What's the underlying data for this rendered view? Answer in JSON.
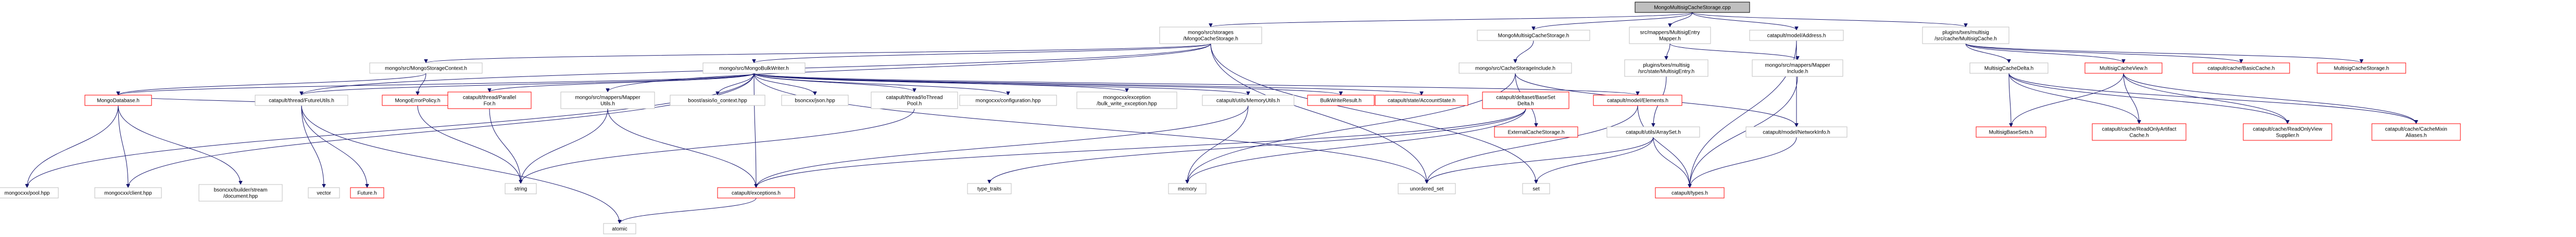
{
  "nodes": [
    {
      "id": "root",
      "lines": [
        "MongoMultisigCacheStorage.cpp"
      ],
      "style": "root"
    },
    {
      "id": "mcs",
      "lines": [
        "mongo/src/storages",
        "/MongoCacheStorage.h"
      ]
    },
    {
      "id": "mmcs",
      "lines": [
        "MongoMultisigCacheStorage.h"
      ]
    },
    {
      "id": "mme",
      "lines": [
        "src/mappers/MultisigEntry",
        "Mapper.h"
      ]
    },
    {
      "id": "cma",
      "lines": [
        "catapult/model/Address.h"
      ]
    },
    {
      "id": "pmc",
      "lines": [
        "plugins/txes/multisig",
        "/src/cache/MultisigCache.h"
      ]
    },
    {
      "id": "msc",
      "lines": [
        "mongo/src/MongoStorageContext.h"
      ]
    },
    {
      "id": "mbw",
      "lines": [
        "mongo/src/MongoBulkWriter.h"
      ]
    },
    {
      "id": "mcsi",
      "lines": [
        "mongo/src/CacheStorageInclude.h"
      ]
    },
    {
      "id": "pme",
      "lines": [
        "plugins/txes/multisig",
        "/src/state/MultisigEntry.h"
      ]
    },
    {
      "id": "mmi",
      "lines": [
        "mongo/src/mappers/Mapper",
        "Include.h"
      ]
    },
    {
      "id": "mcd",
      "lines": [
        "MultisigCacheDelta.h"
      ]
    },
    {
      "id": "mcv",
      "lines": [
        "MultisigCacheView.h"
      ],
      "style": "red"
    },
    {
      "id": "cbc",
      "lines": [
        "catapult/cache/BasicCache.h"
      ],
      "style": "red"
    },
    {
      "id": "mcst",
      "lines": [
        "MultisigCacheStorage.h"
      ],
      "style": "red"
    },
    {
      "id": "mdb",
      "lines": [
        "MongoDatabase.h"
      ],
      "style": "red"
    },
    {
      "id": "ctf",
      "lines": [
        "catapult/thread/FutureUtils.h"
      ]
    },
    {
      "id": "mep",
      "lines": [
        "MongoErrorPolicy.h"
      ],
      "style": "red"
    },
    {
      "id": "ctp",
      "lines": [
        "catapult/thread/Parallel",
        "For.h"
      ],
      "style": "red"
    },
    {
      "id": "mmu",
      "lines": [
        "mongo/src/mappers/Mapper",
        "Utils.h"
      ]
    },
    {
      "id": "bac",
      "lines": [
        "boost/asio/io_context.hpp"
      ]
    },
    {
      "id": "bjs",
      "lines": [
        "bsoncxx/json.hpp"
      ]
    },
    {
      "id": "cit",
      "lines": [
        "catapult/thread/IoThread",
        "Pool.h"
      ]
    },
    {
      "id": "mcf",
      "lines": [
        "mongocxx/configuration.hpp"
      ]
    },
    {
      "id": "mbe",
      "lines": [
        "mongocxx/exception",
        "/bulk_write_exception.hpp"
      ]
    },
    {
      "id": "cmu",
      "lines": [
        "catapult/utils/MemoryUtils.h"
      ]
    },
    {
      "id": "bwr",
      "lines": [
        "BulkWriteResult.h"
      ],
      "style": "red"
    },
    {
      "id": "csa",
      "lines": [
        "catapult/state/AccountState.h"
      ],
      "style": "red"
    },
    {
      "id": "cbd",
      "lines": [
        "catapult/deltaset/BaseSet",
        "Delta.h"
      ],
      "style": "red"
    },
    {
      "id": "cme",
      "lines": [
        "catapult/model/Elements.h"
      ],
      "style": "red"
    },
    {
      "id": "ecs",
      "lines": [
        "ExternalCacheStorage.h"
      ],
      "style": "red"
    },
    {
      "id": "cua",
      "lines": [
        "catapult/utils/ArraySet.h"
      ]
    },
    {
      "id": "cmn",
      "lines": [
        "catapult/model/NetworkInfo.h"
      ]
    },
    {
      "id": "mbs",
      "lines": [
        "MultisigBaseSets.h"
      ],
      "style": "red"
    },
    {
      "id": "cro",
      "lines": [
        "catapult/cache/ReadOnlyArtifact",
        "Cache.h"
      ],
      "style": "red"
    },
    {
      "id": "crv",
      "lines": [
        "catapult/cache/ReadOnlyView",
        "Supplier.h"
      ],
      "style": "red"
    },
    {
      "id": "cca",
      "lines": [
        "catapult/cache/CacheMixin",
        "Aliases.h"
      ],
      "style": "red"
    },
    {
      "id": "mpl",
      "lines": [
        "mongocxx/pool.hpp"
      ]
    },
    {
      "id": "mcl",
      "lines": [
        "mongocxx/client.hpp"
      ]
    },
    {
      "id": "bbs",
      "lines": [
        "bsoncxx/builder/stream",
        "/document.hpp"
      ]
    },
    {
      "id": "vec",
      "lines": [
        "vector"
      ]
    },
    {
      "id": "fut",
      "lines": [
        "Future.h"
      ],
      "style": "red"
    },
    {
      "id": "str",
      "lines": [
        "string"
      ]
    },
    {
      "id": "cex",
      "lines": [
        "catapult/exceptions.h"
      ],
      "style": "red"
    },
    {
      "id": "tt",
      "lines": [
        "type_traits"
      ]
    },
    {
      "id": "mem",
      "lines": [
        "memory"
      ]
    },
    {
      "id": "uset",
      "lines": [
        "unordered_set"
      ]
    },
    {
      "id": "set",
      "lines": [
        "set"
      ]
    },
    {
      "id": "ctt",
      "lines": [
        "catapult/types.h"
      ],
      "style": "red"
    },
    {
      "id": "atm",
      "lines": [
        "atomic"
      ]
    }
  ],
  "edges": [
    [
      "root",
      "mcs"
    ],
    [
      "root",
      "mmcs"
    ],
    [
      "root",
      "mme"
    ],
    [
      "root",
      "cma"
    ],
    [
      "root",
      "pmc"
    ],
    [
      "mcs",
      "msc"
    ],
    [
      "mcs",
      "mbw"
    ],
    [
      "mcs",
      "ctf"
    ],
    [
      "mcs",
      "mmu"
    ],
    [
      "mcs",
      "uset"
    ],
    [
      "mcs",
      "set"
    ],
    [
      "mmcs",
      "mcsi"
    ],
    [
      "mme",
      "pme"
    ],
    [
      "mme",
      "mmi"
    ],
    [
      "cma",
      "cmn"
    ],
    [
      "cma",
      "ctt"
    ],
    [
      "pmc",
      "mcd"
    ],
    [
      "pmc",
      "mcv"
    ],
    [
      "pmc",
      "cbc"
    ],
    [
      "pmc",
      "mcst"
    ],
    [
      "msc",
      "mdb"
    ],
    [
      "msc",
      "mep"
    ],
    [
      "mbw",
      "mdb"
    ],
    [
      "mbw",
      "ctf"
    ],
    [
      "mbw",
      "ctp"
    ],
    [
      "mbw",
      "bac"
    ],
    [
      "mbw",
      "bjs"
    ],
    [
      "mbw",
      "cit"
    ],
    [
      "mbw",
      "mcf"
    ],
    [
      "mbw",
      "mbe"
    ],
    [
      "mbw",
      "cmu"
    ],
    [
      "mbw",
      "bwr"
    ],
    [
      "mbw",
      "csa"
    ],
    [
      "mbw",
      "cme"
    ],
    [
      "mbw",
      "mpl"
    ],
    [
      "mbw",
      "mcl"
    ],
    [
      "mbw",
      "cex"
    ],
    [
      "mbw",
      "uset"
    ],
    [
      "mcsi",
      "ecs"
    ],
    [
      "mcsi",
      "cmn"
    ],
    [
      "mcsi",
      "mem"
    ],
    [
      "pme",
      "cua"
    ],
    [
      "mmi",
      "ctt"
    ],
    [
      "mcd",
      "mbs"
    ],
    [
      "mcd",
      "cro"
    ],
    [
      "mcd",
      "crv"
    ],
    [
      "mcd",
      "cca"
    ],
    [
      "mcv",
      "mbs"
    ],
    [
      "mcv",
      "cro"
    ],
    [
      "mcv",
      "crv"
    ],
    [
      "mcv",
      "cca"
    ],
    [
      "mdb",
      "mpl"
    ],
    [
      "mdb",
      "mcl"
    ],
    [
      "mdb",
      "bbs"
    ],
    [
      "mdb",
      "ctf"
    ],
    [
      "ctf",
      "vec"
    ],
    [
      "ctf",
      "fut"
    ],
    [
      "ctf",
      "atm"
    ],
    [
      "mep",
      "str"
    ],
    [
      "ctp",
      "str"
    ],
    [
      "mmu",
      "str"
    ],
    [
      "mmu",
      "cex"
    ],
    [
      "cit",
      "str"
    ],
    [
      "cmu",
      "cex"
    ],
    [
      "cmu",
      "mem"
    ],
    [
      "cbd",
      "cex"
    ],
    [
      "cbd",
      "tt"
    ],
    [
      "cbd",
      "mem"
    ],
    [
      "cme",
      "uset"
    ],
    [
      "cme",
      "ctt"
    ],
    [
      "cua",
      "uset"
    ],
    [
      "cua",
      "set"
    ],
    [
      "cua",
      "ctt"
    ],
    [
      "cmn",
      "ctt"
    ],
    [
      "cex",
      "atm"
    ]
  ]
}
